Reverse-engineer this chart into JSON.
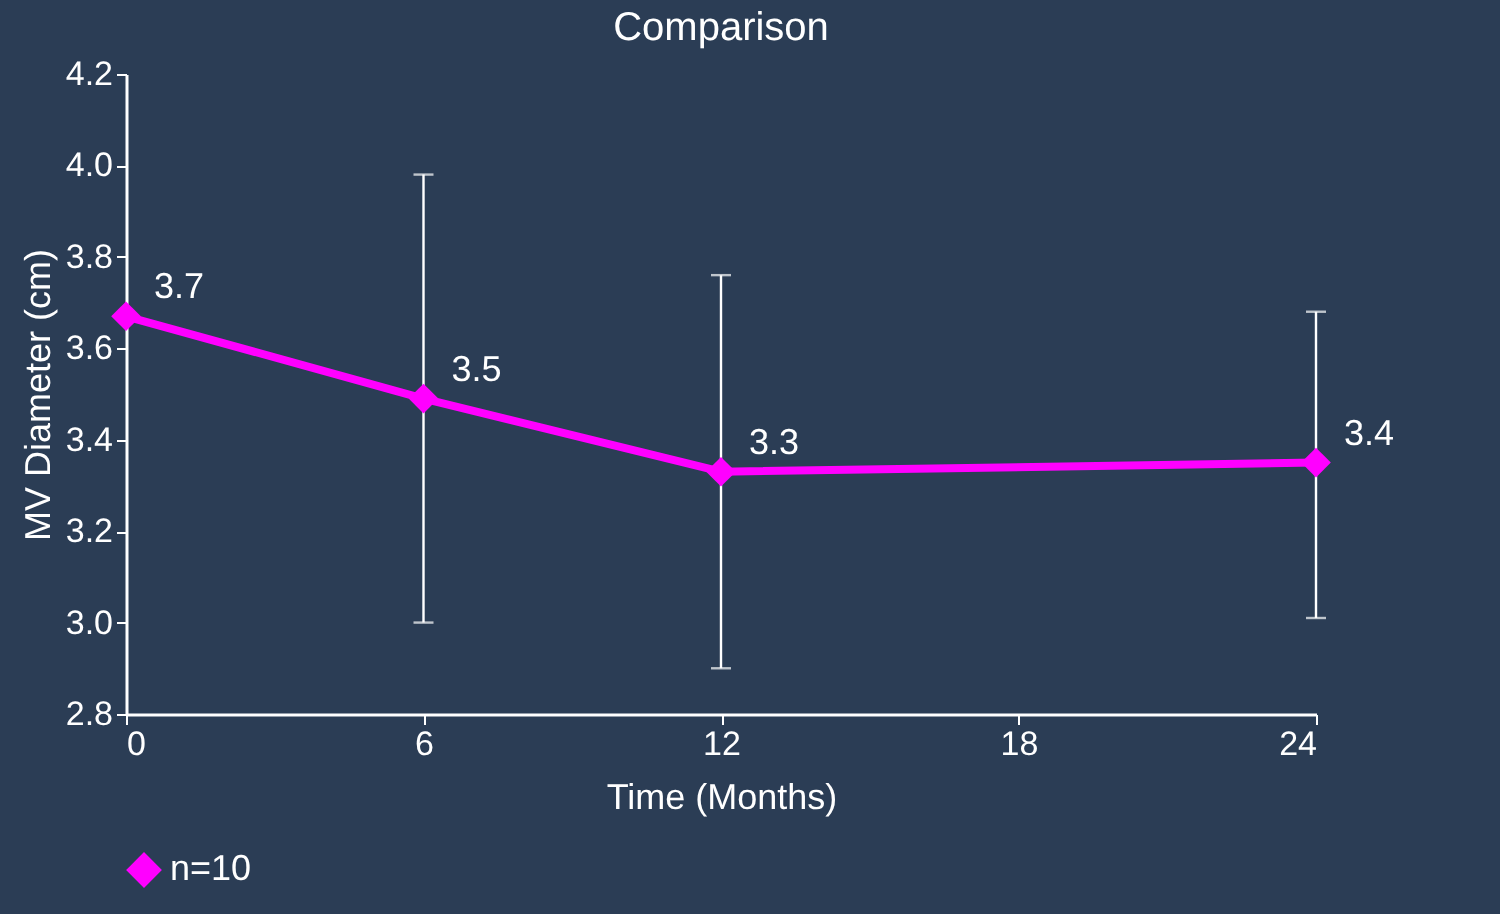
{
  "chart_data": {
    "type": "line",
    "title": "Comparison",
    "xlabel": "Time (Months)",
    "ylabel": "MV Diameter (cm)",
    "series": [
      {
        "name": "n=10",
        "color": "#ff00ff",
        "x": [
          0,
          6,
          12,
          24
        ],
        "values": [
          3.67,
          3.49,
          3.33,
          3.35
        ],
        "errors": [
          null,
          [
            3.0,
            3.98
          ],
          [
            2.9,
            3.76
          ],
          [
            3.01,
            3.68
          ]
        ],
        "value_labels": [
          "3.7",
          "3.5",
          "3.3",
          "3.4"
        ]
      }
    ],
    "xlim": [
      0,
      24
    ],
    "xticks": [
      0,
      6,
      12,
      18,
      24
    ],
    "ylim": [
      2.8,
      4.2
    ],
    "yticks": [
      2.8,
      {
        "value": 3,
        "label": "3.0"
      },
      3.2,
      3.4,
      3.6,
      3.8,
      {
        "value": 4,
        "label": "4.0"
      },
      4.2
    ],
    "grid": false,
    "legend": "bottom",
    "marker": "diamond",
    "line_style": "solid"
  }
}
